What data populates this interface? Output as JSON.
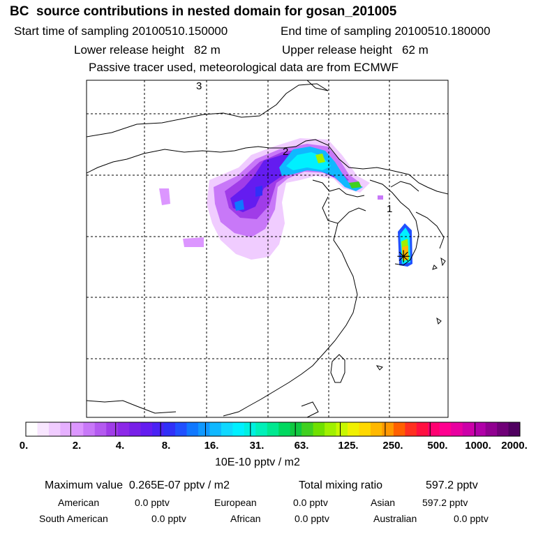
{
  "header": {
    "title": "BC  source contributions in nested domain for gosan_201005",
    "start_label": "Start time of sampling 20100510.150000",
    "end_label": "End time of sampling 20100510.180000",
    "lower_release": "Lower release height   82 m",
    "upper_release": "Upper release height   62 m",
    "tracer_note": "Passive tracer used, meteorological data are from ECMWF"
  },
  "map": {
    "markers": [
      "3",
      "2",
      "1"
    ],
    "receptor_symbol": "✳"
  },
  "colorbar": {
    "tick_labels": [
      "0.",
      "2.",
      "4.",
      "8.",
      "16.",
      "31.",
      "63.",
      "125.",
      "250.",
      "500.",
      "1000.",
      "2000."
    ],
    "colors": [
      "#ffffff",
      "#f8e6ff",
      "#f0ccff",
      "#e6b0ff",
      "#dc96ff",
      "#c878f8",
      "#b45af0",
      "#a03ce8",
      "#8c28e8",
      "#7820e8",
      "#641cf0",
      "#4a22f4",
      "#3030f8",
      "#2050ff",
      "#1078ff",
      "#1098ff",
      "#10b8ff",
      "#10d8ff",
      "#00f0ff",
      "#00f0e0",
      "#00f0b8",
      "#00e890",
      "#00d860",
      "#10c840",
      "#40d020",
      "#70e000",
      "#a0f000",
      "#c8f800",
      "#f0f000",
      "#ffd800",
      "#ffb800",
      "#ff9800",
      "#ff6000",
      "#ff3020",
      "#ff1040",
      "#ff0070",
      "#ff0090",
      "#e800a0",
      "#cc00a8",
      "#b000a8",
      "#900090",
      "#700078",
      "#500060"
    ],
    "unit": "10E-10 pptv / m2"
  },
  "summary": {
    "max_value": "Maximum value  0.265E-07 pptv / m2",
    "total_label": "Total mixing ratio",
    "total_value": "597.2 pptv",
    "regions": [
      {
        "name": "American",
        "value": "0.0 pptv"
      },
      {
        "name": "European",
        "value": "0.0 pptv"
      },
      {
        "name": "Asian",
        "value": "597.2 pptv"
      },
      {
        "name": "South American",
        "value": "0.0 pptv"
      },
      {
        "name": "African",
        "value": "0.0 pptv"
      },
      {
        "name": "Australian",
        "value": "0.0 pptv"
      }
    ]
  }
}
